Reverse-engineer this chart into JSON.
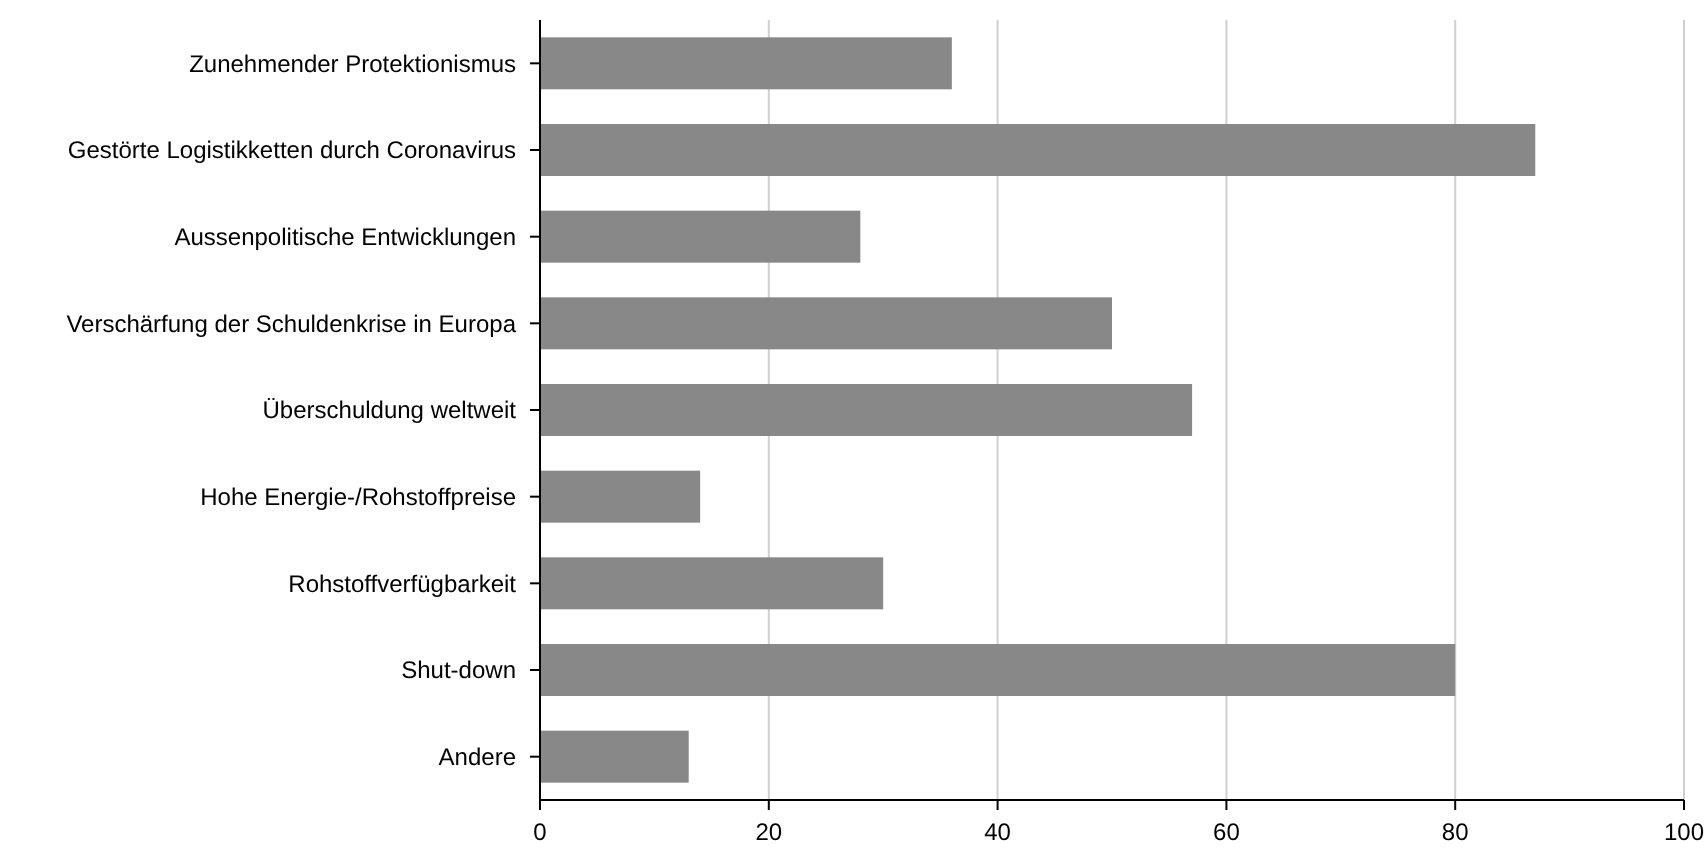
{
  "chart_data": {
    "type": "bar",
    "orientation": "horizontal",
    "categories": [
      "Zunehmender Protektionismus",
      "Gestörte Logistikketten durch Coronavirus",
      "Aussenpolitische Entwicklungen",
      "Verschärfung der Schuldenkrise in Europa",
      "Überschuldung weltweit",
      "Hohe Energie-/Rohstoffpreise",
      "Rohstoffverfügbarkeit",
      "Shut-down",
      "Andere"
    ],
    "values": [
      36,
      87,
      28,
      50,
      57,
      14,
      30,
      80,
      13
    ],
    "color": "#888888",
    "xlim": [
      0,
      100
    ],
    "xticks": [
      0,
      20,
      40,
      60,
      80,
      100
    ],
    "grid": "x"
  }
}
